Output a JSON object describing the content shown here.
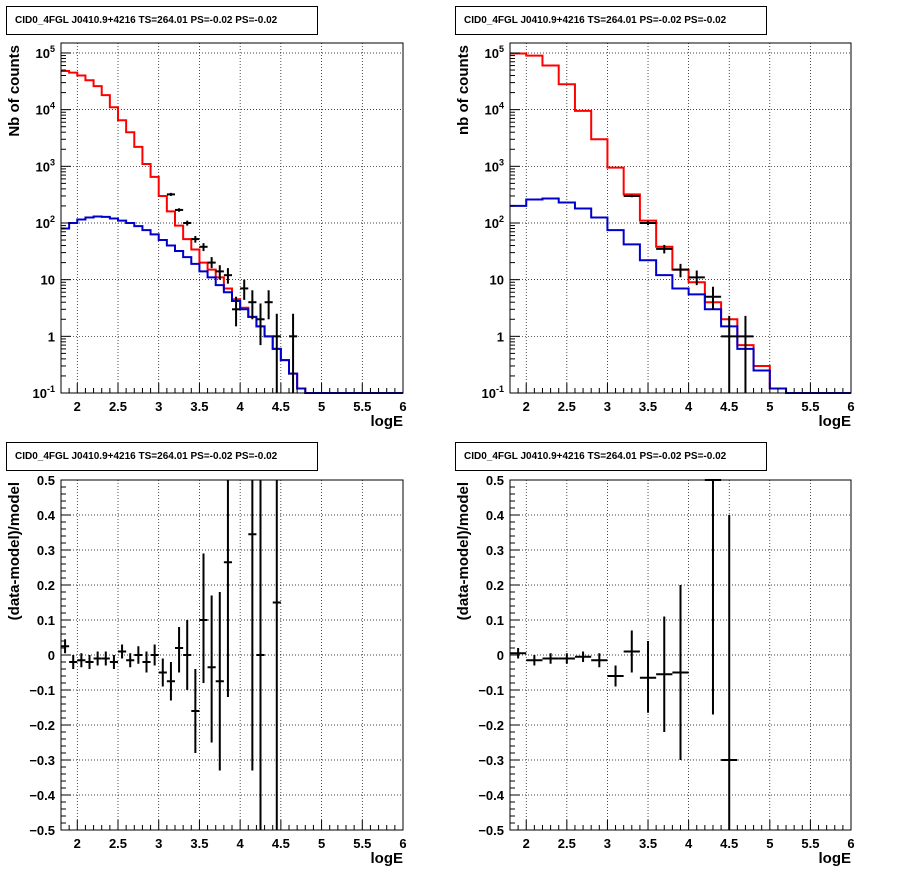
{
  "chart_data": [
    {
      "type": "histogram",
      "title": "CID0_4FGL J0410.9+4216 TS=264.01 PS=-0.02 PS=-0.02",
      "xlabel": "logE",
      "ylabel": "Nb of counts",
      "xlim": [
        1.8,
        6.0
      ],
      "ylim": [
        0.1,
        150000
      ],
      "yscale": "log",
      "grid": true,
      "xticks": [
        "2",
        "2.5",
        "3",
        "3.5",
        "4",
        "4.5",
        "5",
        "5.5",
        "6"
      ],
      "yticks": [
        "10^{-1}",
        "1",
        "10",
        "10^{2}",
        "10^{3}",
        "10^{4}",
        "10^{5}"
      ],
      "bin_edges": [
        1.8,
        1.9,
        2.0,
        2.1,
        2.2,
        2.3,
        2.4,
        2.5,
        2.6,
        2.7,
        2.8,
        2.9,
        3.0,
        3.1,
        3.2,
        3.3,
        3.4,
        3.5,
        3.6,
        3.7,
        3.8,
        3.9,
        4.0,
        4.1,
        4.2,
        4.3,
        4.4,
        4.5,
        4.6,
        4.7,
        4.8,
        4.9,
        5.0,
        5.1,
        5.2,
        5.3,
        5.4,
        5.5,
        5.6,
        5.7,
        5.8,
        5.9,
        6.0
      ],
      "series": [
        {
          "color": "#ff0000",
          "values": [
            48000,
            45000,
            40000,
            33000,
            26000,
            18000,
            11000,
            6500,
            4000,
            2200,
            1100,
            650,
            300,
            160,
            90,
            52,
            34,
            20,
            15,
            11,
            7,
            4.5,
            3.2,
            2.2,
            1.5,
            1.0,
            0.6,
            0.38,
            0.22,
            0.12,
            0.1,
            0.1,
            0.1,
            0.1,
            0.1,
            0.1,
            0.1,
            0.1,
            0.1,
            0.1,
            0.1,
            0.1
          ]
        },
        {
          "color": "#0000cc",
          "values": [
            80,
            100,
            115,
            125,
            130,
            128,
            120,
            110,
            100,
            88,
            75,
            63,
            50,
            40,
            32,
            25,
            19,
            14,
            11,
            8,
            6,
            4.2,
            3,
            2.2,
            1.5,
            1.0,
            0.6,
            0.38,
            0.22,
            0.12,
            0.1,
            0.1,
            0.1,
            0.1,
            0.1,
            0.1,
            0.1,
            0.1,
            0.1,
            0.1,
            0.1,
            0.1
          ]
        }
      ],
      "points": [
        {
          "x": 3.15,
          "y": 320,
          "ylo": 300,
          "yhi": 340,
          "xerr": 0.05
        },
        {
          "x": 3.25,
          "y": 170,
          "ylo": 158,
          "yhi": 182,
          "xerr": 0.05
        },
        {
          "x": 3.35,
          "y": 100,
          "ylo": 90,
          "yhi": 110,
          "xerr": 0.05
        },
        {
          "x": 3.45,
          "y": 52,
          "ylo": 45,
          "yhi": 59,
          "xerr": 0.05
        },
        {
          "x": 3.55,
          "y": 38,
          "ylo": 32,
          "yhi": 44,
          "xerr": 0.05
        },
        {
          "x": 3.65,
          "y": 20,
          "ylo": 16,
          "yhi": 25,
          "xerr": 0.05
        },
        {
          "x": 3.75,
          "y": 14,
          "ylo": 10,
          "yhi": 18,
          "xerr": 0.05
        },
        {
          "x": 3.85,
          "y": 12,
          "ylo": 8.5,
          "yhi": 16,
          "xerr": 0.05
        },
        {
          "x": 3.95,
          "y": 3,
          "ylo": 1.5,
          "yhi": 5,
          "xerr": 0.05
        },
        {
          "x": 4.05,
          "y": 7,
          "ylo": 4.4,
          "yhi": 10,
          "xerr": 0.05
        },
        {
          "x": 4.15,
          "y": 4,
          "ylo": 2,
          "yhi": 6.5,
          "xerr": 0.05
        },
        {
          "x": 4.25,
          "y": 2,
          "ylo": 0.7,
          "yhi": 3.8,
          "xerr": 0.05
        },
        {
          "x": 4.35,
          "y": 4,
          "ylo": 2,
          "yhi": 6.5,
          "xerr": 0.05
        },
        {
          "x": 4.45,
          "y": 1,
          "ylo": 0.1,
          "yhi": 2.5,
          "xerr": 0.05
        },
        {
          "x": 4.65,
          "y": 1,
          "ylo": 0.1,
          "yhi": 2.5,
          "xerr": 0.05
        }
      ]
    },
    {
      "type": "histogram",
      "title": "CID0_4FGL J0410.9+4216 TS=264.01 PS=-0.02 PS=-0.02",
      "xlabel": "logE",
      "ylabel": "nb of counts",
      "xlim": [
        1.8,
        6.0
      ],
      "ylim": [
        0.1,
        150000
      ],
      "yscale": "log",
      "grid": true,
      "xticks": [
        "2",
        "2.5",
        "3",
        "3.5",
        "4",
        "4.5",
        "5",
        "5.5",
        "6"
      ],
      "yticks": [
        "10^{-1}",
        "1",
        "10",
        "10^{2}",
        "10^{3}",
        "10^{4}",
        "10^{5}"
      ],
      "bin_edges": [
        1.8,
        2.0,
        2.2,
        2.4,
        2.6,
        2.8,
        3.0,
        3.2,
        3.4,
        3.6,
        3.8,
        4.0,
        4.2,
        4.4,
        4.6,
        4.8,
        5.0,
        5.2,
        5.4,
        5.6,
        5.8,
        6.0
      ],
      "series": [
        {
          "color": "#ff0000",
          "values": [
            98000,
            90000,
            60000,
            28000,
            9500,
            3000,
            950,
            320,
            110,
            38,
            15,
            9,
            4,
            2,
            0.7,
            0.3,
            0.12,
            0.1,
            0.1,
            0.1,
            0.1
          ]
        },
        {
          "color": "#0000cc",
          "values": [
            200,
            260,
            270,
            230,
            180,
            125,
            75,
            42,
            22,
            12,
            7,
            5.5,
            3,
            1.5,
            0.6,
            0.25,
            0.12,
            0.1,
            0.1,
            0.1,
            0.1
          ]
        }
      ],
      "points": [
        {
          "x": 3.3,
          "y": 300,
          "ylo": 285,
          "yhi": 315,
          "xerr": 0.1
        },
        {
          "x": 3.5,
          "y": 100,
          "ylo": 92,
          "yhi": 108,
          "xerr": 0.1
        },
        {
          "x": 3.7,
          "y": 35,
          "ylo": 29,
          "yhi": 41,
          "xerr": 0.1
        },
        {
          "x": 3.9,
          "y": 15,
          "ylo": 11,
          "yhi": 19,
          "xerr": 0.1
        },
        {
          "x": 4.1,
          "y": 11,
          "ylo": 8,
          "yhi": 14.5,
          "xerr": 0.1
        },
        {
          "x": 4.3,
          "y": 5,
          "ylo": 3,
          "yhi": 7.5,
          "xerr": 0.1
        },
        {
          "x": 4.5,
          "y": 1,
          "ylo": 0.1,
          "yhi": 2.3,
          "xerr": 0.1
        },
        {
          "x": 4.7,
          "y": 1,
          "ylo": 0.1,
          "yhi": 2.3,
          "xerr": 0.1
        }
      ]
    },
    {
      "type": "scatter",
      "title": "CID0_4FGL J0410.9+4216 TS=264.01 PS=-0.02 PS=-0.02",
      "xlabel": "logE",
      "ylabel": "(data-model)/model",
      "xlim": [
        1.8,
        6.0
      ],
      "ylim": [
        -0.5,
        0.5
      ],
      "grid": true,
      "xticks": [
        "2",
        "2.5",
        "3",
        "3.5",
        "4",
        "4.5",
        "5",
        "5.5",
        "6"
      ],
      "yticks": [
        "−0.5",
        "−0.4",
        "−0.3",
        "−0.2",
        "−0.1",
        "0",
        "0.1",
        "0.2",
        "0.3",
        "0.4",
        "0.5"
      ],
      "points": [
        {
          "x": 1.85,
          "y": 0.025,
          "ylo": 0.005,
          "yhi": 0.045,
          "xerr": 0.05
        },
        {
          "x": 1.95,
          "y": -0.02,
          "ylo": -0.04,
          "yhi": 0.0,
          "xerr": 0.05
        },
        {
          "x": 2.05,
          "y": -0.015,
          "ylo": -0.035,
          "yhi": 0.005,
          "xerr": 0.05
        },
        {
          "x": 2.15,
          "y": -0.02,
          "ylo": -0.04,
          "yhi": 0.0,
          "xerr": 0.05
        },
        {
          "x": 2.25,
          "y": -0.01,
          "ylo": -0.03,
          "yhi": 0.01,
          "xerr": 0.05
        },
        {
          "x": 2.35,
          "y": -0.01,
          "ylo": -0.03,
          "yhi": 0.01,
          "xerr": 0.05
        },
        {
          "x": 2.45,
          "y": -0.02,
          "ylo": -0.04,
          "yhi": 0.0,
          "xerr": 0.05
        },
        {
          "x": 2.55,
          "y": 0.01,
          "ylo": -0.01,
          "yhi": 0.03,
          "xerr": 0.05
        },
        {
          "x": 2.65,
          "y": -0.015,
          "ylo": -0.035,
          "yhi": 0.005,
          "xerr": 0.05
        },
        {
          "x": 2.75,
          "y": 0.0,
          "ylo": -0.025,
          "yhi": 0.025,
          "xerr": 0.05
        },
        {
          "x": 2.85,
          "y": -0.02,
          "ylo": -0.05,
          "yhi": 0.01,
          "xerr": 0.05
        },
        {
          "x": 2.95,
          "y": 0.0,
          "ylo": -0.03,
          "yhi": 0.03,
          "xerr": 0.05
        },
        {
          "x": 3.05,
          "y": -0.05,
          "ylo": -0.09,
          "yhi": -0.01,
          "xerr": 0.05
        },
        {
          "x": 3.15,
          "y": -0.075,
          "ylo": -0.13,
          "yhi": -0.02,
          "xerr": 0.05
        },
        {
          "x": 3.25,
          "y": 0.02,
          "ylo": -0.05,
          "yhi": 0.08,
          "xerr": 0.05
        },
        {
          "x": 3.35,
          "y": 0.0,
          "ylo": -0.1,
          "yhi": 0.1,
          "xerr": 0.05
        },
        {
          "x": 3.45,
          "y": -0.16,
          "ylo": -0.28,
          "yhi": -0.04,
          "xerr": 0.05
        },
        {
          "x": 3.55,
          "y": 0.1,
          "ylo": -0.08,
          "yhi": 0.29,
          "xerr": 0.05
        },
        {
          "x": 3.65,
          "y": -0.035,
          "ylo": -0.25,
          "yhi": 0.17,
          "xerr": 0.05
        },
        {
          "x": 3.75,
          "y": -0.075,
          "ylo": -0.33,
          "yhi": 0.18,
          "xerr": 0.05
        },
        {
          "x": 3.85,
          "y": 0.265,
          "ylo": -0.12,
          "yhi": 0.5,
          "xerr": 0.05
        },
        {
          "x": 4.15,
          "y": 0.345,
          "ylo": -0.33,
          "yhi": 0.5,
          "xerr": 0.05
        },
        {
          "x": 4.25,
          "y": 0.0,
          "ylo": -0.5,
          "yhi": 0.5,
          "xerr": 0.05
        },
        {
          "x": 4.45,
          "y": 0.15,
          "ylo": -0.5,
          "yhi": 0.5,
          "xerr": 0.05
        }
      ]
    },
    {
      "type": "scatter",
      "title": "CID0_4FGL J0410.9+4216 TS=264.01 PS=-0.02 PS=-0.02",
      "xlabel": "logE",
      "ylabel": "(data-model)/model",
      "xlim": [
        1.8,
        6.0
      ],
      "ylim": [
        -0.5,
        0.5
      ],
      "grid": true,
      "xticks": [
        "2",
        "2.5",
        "3",
        "3.5",
        "4",
        "4.5",
        "5",
        "5.5",
        "6"
      ],
      "yticks": [
        "−0.5",
        "−0.4",
        "−0.3",
        "−0.2",
        "−0.1",
        "0",
        "0.1",
        "0.2",
        "0.3",
        "0.4",
        "0.5"
      ],
      "points": [
        {
          "x": 1.9,
          "y": 0.005,
          "ylo": -0.01,
          "yhi": 0.02,
          "xerr": 0.1
        },
        {
          "x": 2.1,
          "y": -0.015,
          "ylo": -0.03,
          "yhi": 0.0,
          "xerr": 0.1
        },
        {
          "x": 2.3,
          "y": -0.01,
          "ylo": -0.025,
          "yhi": 0.005,
          "xerr": 0.1
        },
        {
          "x": 2.5,
          "y": -0.01,
          "ylo": -0.025,
          "yhi": 0.005,
          "xerr": 0.1
        },
        {
          "x": 2.7,
          "y": -0.005,
          "ylo": -0.02,
          "yhi": 0.01,
          "xerr": 0.1
        },
        {
          "x": 2.9,
          "y": -0.015,
          "ylo": -0.035,
          "yhi": 0.005,
          "xerr": 0.1
        },
        {
          "x": 3.1,
          "y": -0.06,
          "ylo": -0.09,
          "yhi": -0.03,
          "xerr": 0.1
        },
        {
          "x": 3.3,
          "y": 0.01,
          "ylo": -0.05,
          "yhi": 0.07,
          "xerr": 0.1
        },
        {
          "x": 3.5,
          "y": -0.065,
          "ylo": -0.165,
          "yhi": 0.04,
          "xerr": 0.1
        },
        {
          "x": 3.7,
          "y": -0.055,
          "ylo": -0.22,
          "yhi": 0.11,
          "xerr": 0.1
        },
        {
          "x": 3.9,
          "y": -0.05,
          "ylo": -0.3,
          "yhi": 0.2,
          "xerr": 0.1
        },
        {
          "x": 4.3,
          "y": 0.5,
          "ylo": -0.17,
          "yhi": 0.5,
          "xerr": 0.1
        },
        {
          "x": 4.5,
          "y": -0.3,
          "ylo": -0.5,
          "yhi": 0.4,
          "xerr": 0.1
        }
      ]
    }
  ]
}
